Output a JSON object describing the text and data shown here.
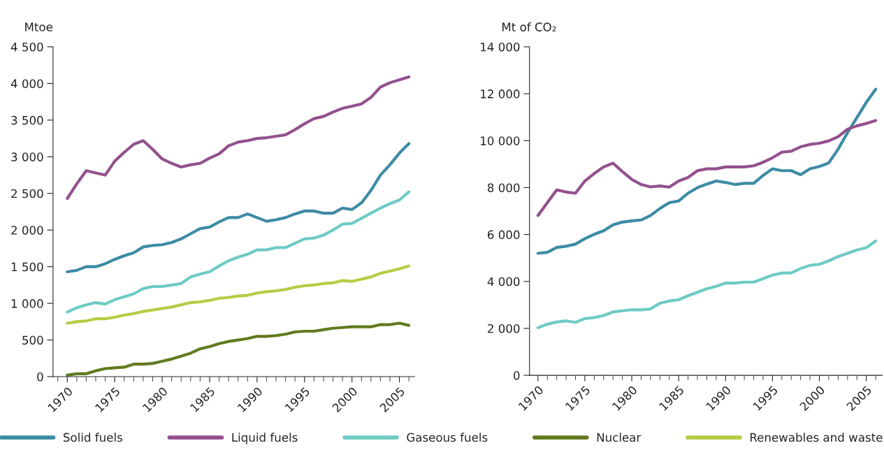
{
  "chart_data": [
    {
      "type": "line",
      "ylabel": "Mtoe",
      "legend": "bottom",
      "grid": false,
      "line_style": "solid",
      "xlim": [
        1968.5,
        2006.6
      ],
      "xticks": [
        1970,
        1975,
        1980,
        1985,
        1990,
        1995,
        2000,
        2005
      ],
      "ylim": [
        0,
        4500
      ],
      "yticks": [
        0,
        500,
        {
          "value": 1000,
          "label": "1 000"
        },
        {
          "value": 1500,
          "label": "1 500"
        },
        {
          "value": 2000,
          "label": "2 000"
        },
        {
          "value": 2500,
          "label": "2 500"
        },
        {
          "value": 3000,
          "label": "3 000"
        },
        {
          "value": 3500,
          "label": "3 500"
        },
        {
          "value": 4000,
          "label": "4 000"
        },
        {
          "value": 4500,
          "label": "4 500"
        }
      ],
      "x": [
        1970,
        1971,
        1972,
        1973,
        1974,
        1975,
        1976,
        1977,
        1978,
        1979,
        1980,
        1981,
        1982,
        1983,
        1984,
        1985,
        1986,
        1987,
        1988,
        1989,
        1990,
        1991,
        1992,
        1993,
        1994,
        1995,
        1996,
        1997,
        1998,
        1999,
        2000,
        2001,
        2002,
        2003,
        2004,
        2005,
        2006
      ],
      "series": [
        {
          "name": "Solid fuels",
          "color": "#3d8ba5",
          "values": [
            1430,
            1450,
            1500,
            1500,
            1540,
            1600,
            1650,
            1690,
            1770,
            1790,
            1800,
            1830,
            1880,
            1950,
            2020,
            2040,
            2110,
            2170,
            2170,
            2220,
            2170,
            2120,
            2140,
            2170,
            2220,
            2260,
            2260,
            2230,
            2230,
            2300,
            2280,
            2370,
            2540,
            2750,
            2890,
            3050,
            3180
          ]
        },
        {
          "name": "Liquid fuels",
          "color": "#93508e",
          "values": [
            2430,
            2630,
            2810,
            2780,
            2750,
            2940,
            3060,
            3170,
            3220,
            3100,
            2970,
            2910,
            2860,
            2890,
            2910,
            2980,
            3040,
            3150,
            3200,
            3220,
            3250,
            3260,
            3280,
            3300,
            3370,
            3450,
            3520,
            3550,
            3610,
            3660,
            3690,
            3720,
            3810,
            3950,
            4010,
            4050,
            4090
          ]
        },
        {
          "name": "Gaseous fuels",
          "color": "#6ecbc4",
          "values": [
            880,
            940,
            980,
            1010,
            990,
            1050,
            1090,
            1130,
            1200,
            1230,
            1230,
            1250,
            1270,
            1360,
            1400,
            1430,
            1510,
            1580,
            1630,
            1670,
            1730,
            1730,
            1760,
            1760,
            1820,
            1880,
            1890,
            1930,
            2000,
            2080,
            2090,
            2160,
            2230,
            2300,
            2360,
            2410,
            2520
          ]
        },
        {
          "name": "Nuclear",
          "color": "#627b1f",
          "values": [
            20,
            40,
            40,
            80,
            110,
            120,
            130,
            170,
            170,
            180,
            210,
            240,
            280,
            320,
            380,
            410,
            450,
            480,
            500,
            520,
            550,
            550,
            560,
            580,
            610,
            620,
            620,
            640,
            660,
            670,
            680,
            680,
            680,
            710,
            710,
            730,
            700
          ]
        },
        {
          "name": "Renewables and waste",
          "color": "#b5cc45",
          "values": [
            730,
            750,
            760,
            790,
            790,
            810,
            840,
            860,
            890,
            910,
            930,
            950,
            980,
            1010,
            1020,
            1040,
            1070,
            1080,
            1100,
            1110,
            1140,
            1160,
            1170,
            1190,
            1220,
            1240,
            1250,
            1270,
            1280,
            1310,
            1300,
            1330,
            1360,
            1410,
            1440,
            1470,
            1510
          ]
        }
      ]
    },
    {
      "type": "line",
      "ylabel": "Mt of CO₂",
      "grid": false,
      "line_style": "solid",
      "xlim": [
        1969.1,
        2006.7
      ],
      "xticks": [
        1970,
        1975,
        1980,
        1985,
        1990,
        1995,
        2000,
        2005
      ],
      "ylim": [
        0,
        14000
      ],
      "yticks": [
        0,
        {
          "value": 2000,
          "label": "2 000"
        },
        {
          "value": 4000,
          "label": "4 000"
        },
        {
          "value": 6000,
          "label": "6 000"
        },
        {
          "value": 8000,
          "label": "8 000"
        },
        {
          "value": 10000,
          "label": "10 000"
        },
        {
          "value": 12000,
          "label": "12 000"
        },
        {
          "value": 14000,
          "label": "14 000"
        }
      ],
      "x": [
        1970,
        1971,
        1972,
        1973,
        1974,
        1975,
        1976,
        1977,
        1978,
        1979,
        1980,
        1981,
        1982,
        1983,
        1984,
        1985,
        1986,
        1987,
        1988,
        1989,
        1990,
        1991,
        1992,
        1993,
        1994,
        1995,
        1996,
        1997,
        1998,
        1999,
        2000,
        2001,
        2002,
        2003,
        2004,
        2005,
        2006
      ],
      "series": [
        {
          "color": "#3d8ba5",
          "values": [
            5200,
            5240,
            5450,
            5500,
            5590,
            5820,
            6010,
            6160,
            6410,
            6530,
            6580,
            6620,
            6810,
            7110,
            7360,
            7430,
            7760,
            8000,
            8150,
            8280,
            8220,
            8130,
            8180,
            8180,
            8520,
            8800,
            8720,
            8720,
            8550,
            8800,
            8900,
            9050,
            9640,
            10340,
            10980,
            11630,
            12190
          ]
        },
        {
          "color": "#93508e",
          "values": [
            6810,
            7360,
            7900,
            7810,
            7760,
            8280,
            8600,
            8880,
            9040,
            8680,
            8350,
            8130,
            8030,
            8070,
            8020,
            8280,
            8430,
            8720,
            8800,
            8800,
            8880,
            8880,
            8880,
            8930,
            9080,
            9270,
            9510,
            9550,
            9740,
            9840,
            9890,
            9990,
            10170,
            10490,
            10630,
            10730,
            10860
          ]
        },
        {
          "color": "#6ecbc4",
          "values": [
            2030,
            2180,
            2270,
            2320,
            2260,
            2420,
            2460,
            2550,
            2700,
            2750,
            2790,
            2790,
            2830,
            3070,
            3170,
            3220,
            3390,
            3540,
            3690,
            3790,
            3930,
            3930,
            3970,
            3970,
            4120,
            4270,
            4360,
            4360,
            4550,
            4690,
            4730,
            4880,
            5060,
            5200,
            5340,
            5440,
            5720
          ]
        }
      ]
    }
  ]
}
